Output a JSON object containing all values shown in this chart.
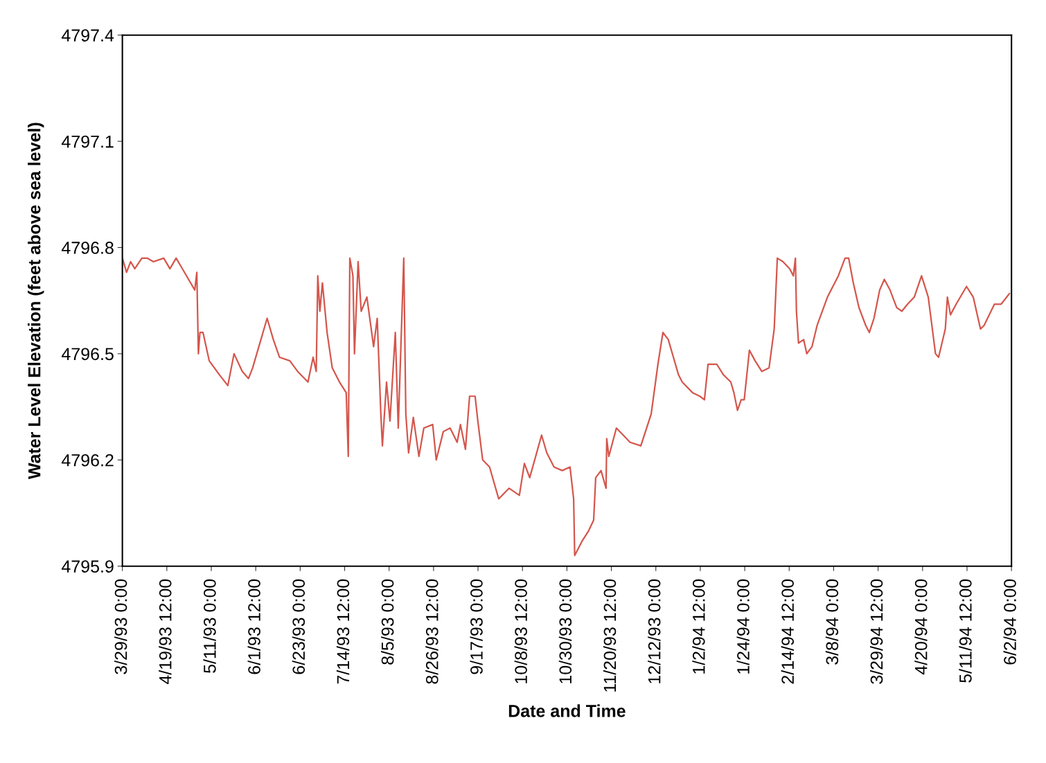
{
  "chart_data": {
    "type": "line",
    "xlabel": "Date and Time",
    "ylabel": "Water Level Elevation (feet above sea level)",
    "xlim": [
      "1993-03-29T00:00",
      "1994-06-02T00:00"
    ],
    "xticks": [
      {
        "value": "1993-03-29T00:00",
        "label": "3/29/93 0:00"
      },
      {
        "value": "1993-04-19T12:00",
        "label": "4/19/93 12:00"
      },
      {
        "value": "1993-05-11T00:00",
        "label": "5/11/93 0:00"
      },
      {
        "value": "1993-06-01T12:00",
        "label": "6/1/93 12:00"
      },
      {
        "value": "1993-06-23T00:00",
        "label": "6/23/93 0:00"
      },
      {
        "value": "1993-07-14T12:00",
        "label": "7/14/93 12:00"
      },
      {
        "value": "1993-08-05T00:00",
        "label": "8/5/93 0:00"
      },
      {
        "value": "1993-08-26T12:00",
        "label": "8/26/93 12:00"
      },
      {
        "value": "1993-09-17T00:00",
        "label": "9/17/93 0:00"
      },
      {
        "value": "1993-10-08T12:00",
        "label": "10/8/93 12:00"
      },
      {
        "value": "1993-10-30T00:00",
        "label": "10/30/93 0:00"
      },
      {
        "value": "1993-11-20T12:00",
        "label": "11/20/93 12:00"
      },
      {
        "value": "1993-12-12T00:00",
        "label": "12/12/93 0:00"
      },
      {
        "value": "1994-01-02T12:00",
        "label": "1/2/94 12:00"
      },
      {
        "value": "1994-01-24T00:00",
        "label": "1/24/94 0:00"
      },
      {
        "value": "1994-02-14T12:00",
        "label": "2/14/94 12:00"
      },
      {
        "value": "1994-03-08T00:00",
        "label": "3/8/94 0:00"
      },
      {
        "value": "1994-03-29T12:00",
        "label": "3/29/94 12:00"
      },
      {
        "value": "1994-04-20T00:00",
        "label": "4/20/94 0:00"
      },
      {
        "value": "1994-05-11T12:00",
        "label": "5/11/94 12:00"
      },
      {
        "value": "1994-06-02T00:00",
        "label": "6/2/94 0:00"
      }
    ],
    "ylim": [
      4795.9,
      4797.4
    ],
    "yticks": [
      4795.9,
      4796.2,
      4796.5,
      4796.8,
      4797.1,
      4797.4
    ],
    "grid": false,
    "legend": false,
    "marker": "none",
    "line_style": "solid",
    "x": [
      "1993-03-29T00:00",
      "1993-03-31T00:00",
      "1993-04-02T00:00",
      "1993-04-04T00:00",
      "1993-04-07T10:00",
      "1993-04-10T00:00",
      "1993-04-13T00:00",
      "1993-04-18T00:00",
      "1993-04-21T00:00",
      "1993-04-24T00:00",
      "1993-04-26T00:00",
      "1993-04-30T00:00",
      "1993-05-03T00:00",
      "1993-05-04T00:00",
      "1993-05-04T18:00",
      "1993-05-05T12:00",
      "1993-05-07T00:00",
      "1993-05-10T00:00",
      "1993-05-15T00:00",
      "1993-05-19T00:00",
      "1993-05-22T00:00",
      "1993-05-26T00:00",
      "1993-05-29T00:00",
      "1993-05-31T00:00",
      "1993-06-03T00:00",
      "1993-06-07T00:00",
      "1993-06-10T00:00",
      "1993-06-13T00:00",
      "1993-06-18T00:00",
      "1993-06-21T18:00",
      "1993-06-26T18:00",
      "1993-06-29T06:00",
      "1993-06-30T18:00",
      "1993-07-01T12:00",
      "1993-07-02T12:00",
      "1993-07-03T18:00",
      "1993-07-06T00:00",
      "1993-07-08T12:00",
      "1993-07-12T00:00",
      "1993-07-15T06:00",
      "1993-07-16T06:00",
      "1993-07-17T00:00",
      "1993-07-18T12:00",
      "1993-07-19T06:00",
      "1993-07-21T00:00",
      "1993-07-22T12:00",
      "1993-07-25T06:00",
      "1993-07-28T12:00",
      "1993-07-30T06:00",
      "1993-08-01T00:00",
      "1993-08-01T18:00",
      "1993-08-03T18:00",
      "1993-08-05T10:00",
      "1993-08-08T00:00",
      "1993-08-09T10:00",
      "1993-08-12T02:00",
      "1993-08-13T02:00",
      "1993-08-14T10:00",
      "1993-08-16T17:00",
      "1993-08-19T10:00",
      "1993-08-21T19:00",
      "1993-08-26T02:00",
      "1993-08-27T19:00",
      "1993-08-31T05:00",
      "1993-09-03T12:00",
      "1993-09-06T22:00",
      "1993-09-08T12:00",
      "1993-09-10T22:00",
      "1993-09-12T22:00",
      "1993-09-15T14:00",
      "1993-09-16T22:00",
      "1993-09-19T06:00",
      "1993-09-22T14:00",
      "1993-09-27T00:00",
      "1993-10-02T00:00",
      "1993-10-07T00:00",
      "1993-10-09T10:00",
      "1993-10-12T00:00",
      "1993-10-17T18:00",
      "1993-10-20T06:00",
      "1993-10-23T18:00",
      "1993-10-27T18:00",
      "1993-10-31T12:00",
      "1993-11-02T06:00",
      "1993-11-02T18:00",
      "1993-11-06T06:00",
      "1993-11-09T12:00",
      "1993-11-11T22:00",
      "1993-11-12T22:00",
      "1993-11-15T12:00",
      "1993-11-17T22:00",
      "1993-11-18T06:00",
      "1993-11-19T06:00",
      "1993-11-22T22:00",
      "1993-11-26T06:00",
      "1993-11-29T12:00",
      "1993-12-04T18:00",
      "1993-12-09T18:00",
      "1993-12-13T00:00",
      "1993-12-15T10:00",
      "1993-12-18T00:00",
      "1993-12-23T00:00",
      "1993-12-24T18:00",
      "1993-12-29T18:00",
      "1994-01-02T06:00",
      "1994-01-04T12:00",
      "1994-01-06T06:00",
      "1994-01-10T12:00",
      "1994-01-13T18:00",
      "1994-01-17T06:00",
      "1994-01-18T18:00",
      "1994-01-20T12:00",
      "1994-01-22T06:00",
      "1994-01-23T18:00",
      "1994-01-26T06:00",
      "1994-01-29T00:00",
      "1994-02-01T06:00",
      "1994-02-04T18:00",
      "1994-02-07T06:00",
      "1994-02-08T18:00",
      "1994-02-11T12:00",
      "1994-02-14T18:00",
      "1994-02-16T12:00",
      "1994-02-17T12:00",
      "1994-02-18T00:00",
      "1994-02-19T00:00",
      "1994-02-21T12:00",
      "1994-02-23T00:00",
      "1994-02-25T12:00",
      "1994-02-28T00:00",
      "1994-03-05T00:00",
      "1994-03-10T06:00",
      "1994-03-13T12:00",
      "1994-03-15T06:00",
      "1994-03-17T12:00",
      "1994-03-20T06:00",
      "1994-03-23T12:00",
      "1994-03-25T06:00",
      "1994-03-27T12:00",
      "1994-03-30T06:00",
      "1994-04-01T12:00",
      "1994-04-04T06:00",
      "1994-04-07T12:00",
      "1994-04-10T00:00",
      "1994-04-12T18:00",
      "1994-04-16T00:00",
      "1994-04-19T12:00",
      "1994-04-22T18:00",
      "1994-04-26T06:00",
      "1994-04-27T18:00",
      "1994-05-01T00:00",
      "1994-05-02T00:00",
      "1994-05-03T12:00",
      "1994-05-06T06:00",
      "1994-05-11T06:00",
      "1994-05-14T12:00",
      "1994-05-18T00:00",
      "1994-05-19T18:00",
      "1994-05-24T18:00",
      "1994-05-28T00:00",
      "1994-06-01T00:00"
    ],
    "series": [
      {
        "color": "#d4564c",
        "values": [
          4796.77,
          4796.73,
          4796.76,
          4796.74,
          4796.77,
          4796.77,
          4796.76,
          4796.77,
          4796.74,
          4796.77,
          4796.75,
          4796.71,
          4796.68,
          4796.73,
          4796.5,
          4796.56,
          4796.56,
          4796.48,
          4796.44,
          4796.41,
          4796.5,
          4796.45,
          4796.43,
          4796.46,
          4796.52,
          4796.6,
          4796.54,
          4796.49,
          4796.48,
          4796.45,
          4796.42,
          4796.49,
          4796.45,
          4796.72,
          4796.62,
          4796.7,
          4796.56,
          4796.46,
          4796.42,
          4796.39,
          4796.21,
          4796.77,
          4796.72,
          4796.5,
          4796.76,
          4796.62,
          4796.66,
          4796.52,
          4796.6,
          4796.33,
          4796.24,
          4796.42,
          4796.31,
          4796.56,
          4796.29,
          4796.77,
          4796.33,
          4796.22,
          4796.32,
          4796.21,
          4796.29,
          4796.3,
          4796.2,
          4796.28,
          4796.29,
          4796.25,
          4796.3,
          4796.23,
          4796.38,
          4796.38,
          4796.31,
          4796.2,
          4796.18,
          4796.09,
          4796.12,
          4796.1,
          4796.19,
          4796.15,
          4796.27,
          4796.22,
          4796.18,
          4796.17,
          4796.18,
          4796.09,
          4795.93,
          4795.97,
          4796.0,
          4796.03,
          4796.15,
          4796.17,
          4796.12,
          4796.26,
          4796.21,
          4796.29,
          4796.27,
          4796.25,
          4796.24,
          4796.33,
          4796.47,
          4796.56,
          4796.54,
          4796.44,
          4796.42,
          4796.39,
          4796.38,
          4796.37,
          4796.47,
          4796.47,
          4796.44,
          4796.42,
          4796.39,
          4796.34,
          4796.37,
          4796.37,
          4796.51,
          4796.48,
          4796.45,
          4796.46,
          4796.57,
          4796.77,
          4796.76,
          4796.74,
          4796.72,
          4796.77,
          4796.62,
          4796.53,
          4796.54,
          4796.5,
          4796.52,
          4796.58,
          4796.66,
          4796.72,
          4796.77,
          4796.77,
          4796.7,
          4796.63,
          4796.58,
          4796.56,
          4796.6,
          4796.68,
          4796.71,
          4796.68,
          4796.63,
          4796.62,
          4796.64,
          4796.66,
          4796.72,
          4796.66,
          4796.5,
          4796.49,
          4796.57,
          4796.66,
          4796.61,
          4796.64,
          4796.69,
          4796.66,
          4796.57,
          4796.58,
          4796.64,
          4796.64,
          4796.67
        ]
      }
    ]
  }
}
